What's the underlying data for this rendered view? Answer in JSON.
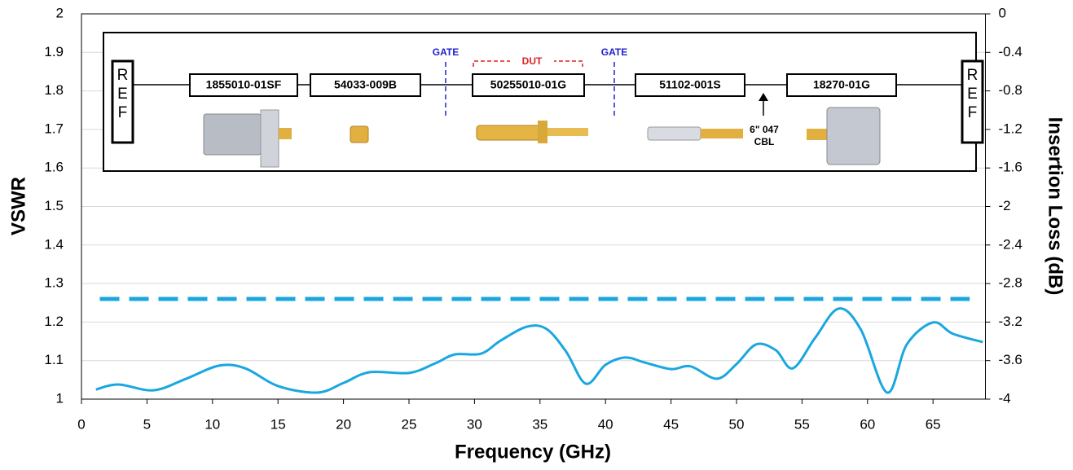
{
  "chart_data": {
    "type": "line",
    "xlabel": "Frequency (GHz)",
    "ylabel": "VSWR",
    "y2label": "Insertion Loss (dB)",
    "xlim": [
      0,
      69
    ],
    "xticks": [
      0,
      5,
      10,
      15,
      20,
      25,
      30,
      35,
      40,
      45,
      50,
      55,
      60,
      65
    ],
    "ylim": [
      1,
      2
    ],
    "yticks": [
      1,
      1.1,
      1.2,
      1.3,
      1.4,
      1.5,
      1.6,
      1.7,
      1.8,
      1.9,
      2
    ],
    "y2lim": [
      -4,
      0
    ],
    "y2ticks": [
      -4,
      -3.6,
      -3.2,
      -2.8,
      -2.4,
      -2,
      -1.6,
      -1.2,
      -0.8,
      -0.4,
      0
    ],
    "grid": true,
    "series": [
      {
        "color": "#1aa7e0",
        "dashed": false,
        "x": [
          1.1,
          2.8,
          5.5,
          8,
          10.5,
          12.5,
          15,
          18,
          20,
          22,
          25,
          27,
          28.5,
          30.5,
          32,
          34,
          35.5,
          37,
          38.5,
          40,
          41.5,
          43,
          45,
          46.5,
          48.5,
          50,
          51.5,
          53,
          54.3,
          56,
          57.8,
          59.5,
          61.5,
          63,
          65,
          66.5,
          68.8
        ],
        "values": [
          1.025,
          1.038,
          1.023,
          1.053,
          1.087,
          1.08,
          1.034,
          1.017,
          1.042,
          1.07,
          1.068,
          1.093,
          1.116,
          1.118,
          1.152,
          1.188,
          1.182,
          1.123,
          1.04,
          1.089,
          1.108,
          1.095,
          1.078,
          1.085,
          1.053,
          1.091,
          1.142,
          1.127,
          1.08,
          1.159,
          1.235,
          1.18,
          1.017,
          1.142,
          1.199,
          1.17,
          1.148
        ]
      },
      {
        "color": "#1aa7e0",
        "dashed": true,
        "x": [
          1.4,
          67.8
        ],
        "values": [
          1.26,
          1.26
        ]
      }
    ]
  },
  "diagram": {
    "ref_left": "REF",
    "ref_right": "REF",
    "components": [
      "1855010-01SF",
      "54033-009B",
      "50255010-01G",
      "51102-001S",
      "18270-01G"
    ],
    "gate_left": "GATE",
    "gate_right": "GATE",
    "dut": "DUT",
    "cable": [
      "6\" 047",
      "CBL"
    ]
  }
}
